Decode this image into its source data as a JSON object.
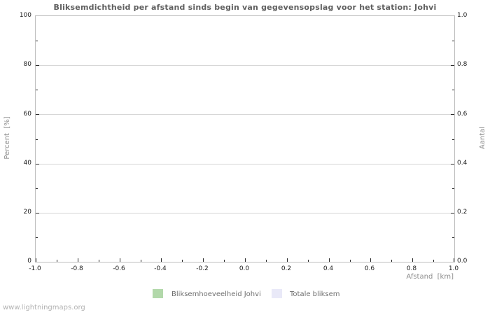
{
  "title": "Bliksemdichtheid per afstand sinds begin van gegevensopslag voor het station: Johvi",
  "watermark": "www.lightningmaps.org",
  "axes": {
    "y_left": {
      "label": "Percent  [%]",
      "ticks": [
        "100",
        "80",
        "60",
        "40",
        "20",
        "0"
      ]
    },
    "y_right": {
      "label": "Aantal",
      "ticks": [
        "1.0",
        "0.8",
        "0.6",
        "0.4",
        "0.2",
        "0.0"
      ]
    },
    "x": {
      "label": "Afstand  [km]",
      "ticks": [
        "-1.0",
        "-0.8",
        "-0.6",
        "-0.4",
        "-0.2",
        "0.0",
        "0.2",
        "0.4",
        "0.6",
        "0.8",
        "1.0"
      ]
    }
  },
  "legend": [
    {
      "label": "Bliksemhoeveelheid Johvi",
      "color": "#b2d8aa"
    },
    {
      "label": "Totale bliksem",
      "color": "#e9e9f8"
    }
  ],
  "chart_data": {
    "type": "bar",
    "title": "Bliksemdichtheid per afstand sinds begin van gegevensopslag voor het station: Johvi",
    "xlabel": "Afstand [km]",
    "ylabel_left": "Percent [%]",
    "ylabel_right": "Aantal",
    "xlim": [
      -1.0,
      1.0
    ],
    "ylim_left": [
      0,
      100
    ],
    "ylim_right": [
      0.0,
      1.0
    ],
    "x_tick_step": 0.2,
    "y_left_tick_step": 20,
    "y_right_tick_step": 0.2,
    "grid": "horizontal-only",
    "legend_position": "bottom-center",
    "categories": [],
    "series": [
      {
        "name": "Bliksemhoeveelheid Johvi",
        "color": "#b2d8aa",
        "values": []
      },
      {
        "name": "Totale bliksem",
        "color": "#e9e9f8",
        "values": []
      }
    ]
  }
}
